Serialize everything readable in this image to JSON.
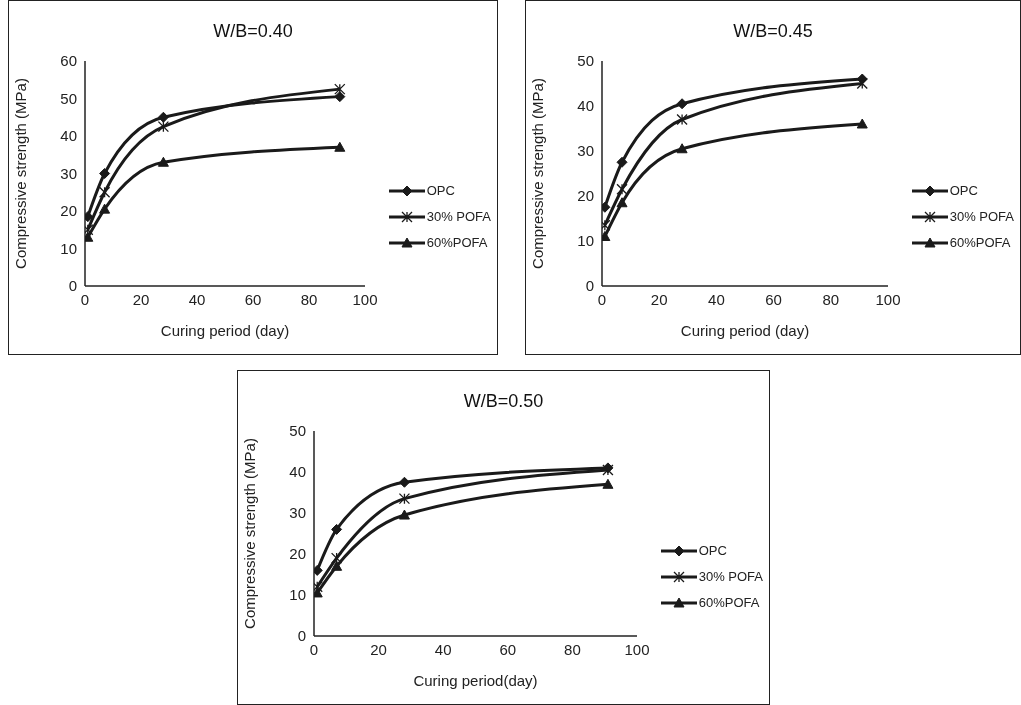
{
  "chart_data": [
    {
      "type": "line",
      "title": "W/B=0.40",
      "xlabel": "Curing period (day)",
      "ylabel": "Compressive strength (MPa)",
      "x": [
        1,
        7,
        28,
        91
      ],
      "xlim": [
        0,
        100
      ],
      "xticks": [
        0,
        20,
        40,
        60,
        80,
        100
      ],
      "ylim": [
        0,
        60
      ],
      "yticks": [
        0,
        10,
        20,
        30,
        40,
        50,
        60
      ],
      "legend": "right",
      "series": [
        {
          "name": "OPC",
          "color": "#1a1a1a",
          "marker": "diamond",
          "values": [
            18.5,
            30,
            45,
            50.5
          ]
        },
        {
          "name": "30% POFA",
          "color": "#1a1a1a",
          "marker": "cross",
          "values": [
            15,
            25,
            42.5,
            52.5
          ]
        },
        {
          "name": "60%POFA",
          "color": "#1a1a1a",
          "marker": "triangle",
          "values": [
            13,
            20.5,
            33,
            37
          ]
        }
      ]
    },
    {
      "type": "line",
      "title": "W/B=0.45",
      "xlabel": "Curing period (day)",
      "ylabel": "Compressive strength (MPa)",
      "x": [
        1,
        7,
        28,
        91
      ],
      "xlim": [
        0,
        100
      ],
      "xticks": [
        0,
        20,
        40,
        60,
        80,
        100
      ],
      "ylim": [
        0,
        50
      ],
      "yticks": [
        0,
        10,
        20,
        30,
        40,
        50
      ],
      "legend": "right",
      "series": [
        {
          "name": "OPC",
          "color": "#1a1a1a",
          "marker": "diamond",
          "values": [
            17.5,
            27.5,
            40.5,
            46
          ]
        },
        {
          "name": "30% POFA",
          "color": "#1a1a1a",
          "marker": "cross",
          "values": [
            13.5,
            21.5,
            37,
            45
          ]
        },
        {
          "name": "60%POFA",
          "color": "#1a1a1a",
          "marker": "triangle",
          "values": [
            11,
            18.5,
            30.5,
            36
          ]
        }
      ]
    },
    {
      "type": "line",
      "title": "W/B=0.50",
      "xlabel": "Curing period(day)",
      "ylabel": "Compressive strength (MPa)",
      "x": [
        1,
        7,
        28,
        91
      ],
      "xlim": [
        0,
        100
      ],
      "xticks": [
        0,
        20,
        40,
        60,
        80,
        100
      ],
      "ylim": [
        0,
        50
      ],
      "yticks": [
        0,
        10,
        20,
        30,
        40,
        50
      ],
      "legend": "right",
      "series": [
        {
          "name": "OPC",
          "color": "#1a1a1a",
          "marker": "diamond",
          "values": [
            16,
            26,
            37.5,
            41
          ]
        },
        {
          "name": "30% POFA",
          "color": "#1a1a1a",
          "marker": "cross",
          "values": [
            12,
            19,
            33.5,
            40.5
          ]
        },
        {
          "name": "60%POFA",
          "color": "#1a1a1a",
          "marker": "triangle",
          "values": [
            10.5,
            17,
            29.5,
            37
          ]
        }
      ]
    }
  ]
}
